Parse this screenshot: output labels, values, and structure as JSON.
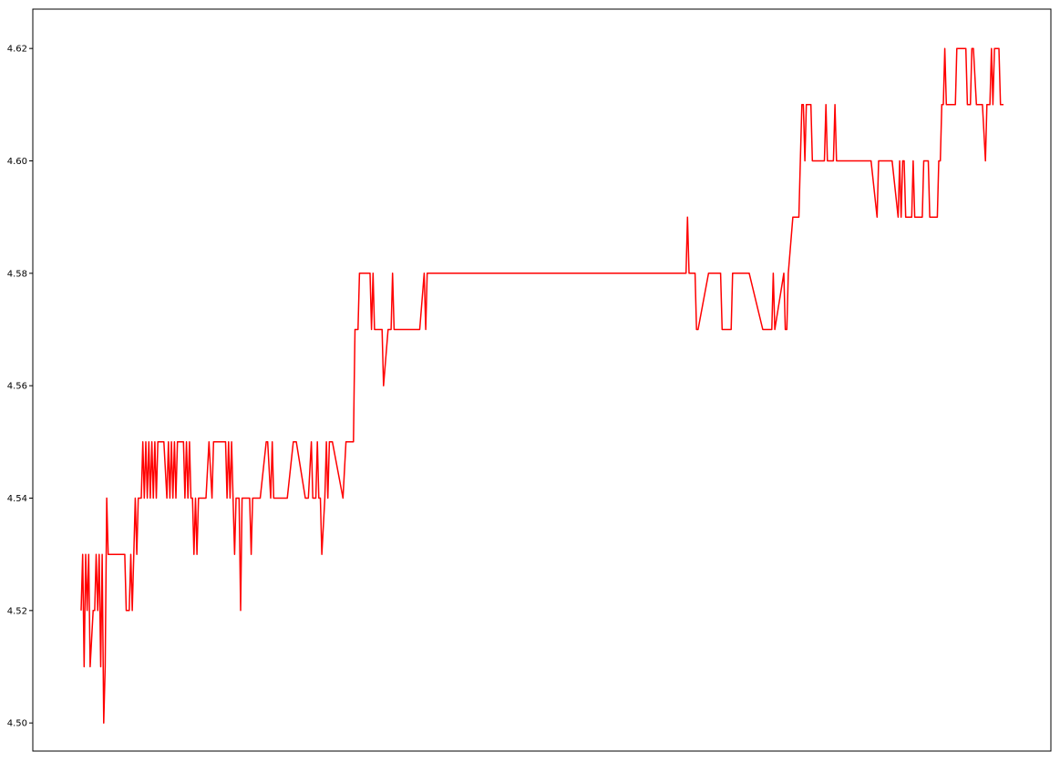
{
  "chart_data": {
    "type": "line",
    "title": "",
    "xlabel": "",
    "ylabel": "",
    "ylim": [
      4.495,
      4.627
    ],
    "grid": false,
    "legend": "none",
    "x_ticks_visible": false,
    "y_ticks": [
      "4.50",
      "4.52",
      "4.54",
      "4.56",
      "4.58",
      "4.60",
      "4.62"
    ],
    "series": [
      {
        "color": "#ff0000",
        "points": [
          [
            1,
            4.52
          ],
          [
            2,
            4.53
          ],
          [
            3,
            4.51
          ],
          [
            4,
            4.53
          ],
          [
            5,
            4.52
          ],
          [
            6,
            4.53
          ],
          [
            7,
            4.51
          ],
          [
            9,
            4.52
          ],
          [
            10,
            4.52
          ],
          [
            11,
            4.53
          ],
          [
            12,
            4.52
          ],
          [
            13,
            4.53
          ],
          [
            14,
            4.51
          ],
          [
            15,
            4.53
          ],
          [
            16,
            4.5
          ],
          [
            17,
            4.51
          ],
          [
            18,
            4.54
          ],
          [
            19,
            4.53
          ],
          [
            30,
            4.53
          ],
          [
            31,
            4.52
          ],
          [
            33,
            4.52
          ],
          [
            34,
            4.53
          ],
          [
            35,
            4.52
          ],
          [
            36,
            4.53
          ],
          [
            37,
            4.54
          ],
          [
            38,
            4.53
          ],
          [
            39,
            4.54
          ],
          [
            41,
            4.54
          ],
          [
            42,
            4.55
          ],
          [
            43,
            4.54
          ],
          [
            44,
            4.55
          ],
          [
            45,
            4.54
          ],
          [
            46,
            4.55
          ],
          [
            47,
            4.54
          ],
          [
            48,
            4.55
          ],
          [
            49,
            4.54
          ],
          [
            50,
            4.55
          ],
          [
            51,
            4.54
          ],
          [
            52,
            4.55
          ],
          [
            56,
            4.55
          ],
          [
            58,
            4.54
          ],
          [
            59,
            4.55
          ],
          [
            60,
            4.54
          ],
          [
            61,
            4.55
          ],
          [
            62,
            4.54
          ],
          [
            63,
            4.55
          ],
          [
            64,
            4.54
          ],
          [
            65,
            4.55
          ],
          [
            69,
            4.55
          ],
          [
            70,
            4.54
          ],
          [
            71,
            4.55
          ],
          [
            72,
            4.54
          ],
          [
            73,
            4.55
          ],
          [
            74,
            4.54
          ],
          [
            75,
            4.54
          ],
          [
            76,
            4.53
          ],
          [
            77,
            4.54
          ],
          [
            78,
            4.53
          ],
          [
            79,
            4.54
          ],
          [
            84,
            4.54
          ],
          [
            86,
            4.55
          ],
          [
            88,
            4.54
          ],
          [
            89,
            4.55
          ],
          [
            97,
            4.55
          ],
          [
            98,
            4.54
          ],
          [
            99,
            4.55
          ],
          [
            100,
            4.54
          ],
          [
            101,
            4.55
          ],
          [
            102,
            4.54
          ],
          [
            103,
            4.53
          ],
          [
            104,
            4.54
          ],
          [
            106,
            4.54
          ],
          [
            107,
            4.52
          ],
          [
            108,
            4.54
          ],
          [
            113,
            4.54
          ],
          [
            114,
            4.53
          ],
          [
            115,
            4.54
          ],
          [
            120,
            4.54
          ],
          [
            124,
            4.55
          ],
          [
            125,
            4.55
          ],
          [
            127,
            4.54
          ],
          [
            128,
            4.55
          ],
          [
            129,
            4.54
          ],
          [
            138,
            4.54
          ],
          [
            142,
            4.55
          ],
          [
            144,
            4.55
          ],
          [
            150,
            4.54
          ],
          [
            152,
            4.54
          ],
          [
            154,
            4.55
          ],
          [
            155,
            4.54
          ],
          [
            157,
            4.54
          ],
          [
            158,
            4.55
          ],
          [
            159,
            4.54
          ],
          [
            160,
            4.54
          ],
          [
            161,
            4.53
          ],
          [
            163,
            4.54
          ],
          [
            164,
            4.55
          ],
          [
            165,
            4.54
          ],
          [
            166,
            4.55
          ],
          [
            168,
            4.55
          ],
          [
            175,
            4.54
          ],
          [
            177,
            4.55
          ],
          [
            182,
            4.55
          ],
          [
            182.5,
            4.56
          ],
          [
            183,
            4.57
          ],
          [
            185,
            4.57
          ],
          [
            186,
            4.58
          ],
          [
            193,
            4.58
          ],
          [
            194,
            4.57
          ],
          [
            195,
            4.58
          ],
          [
            196,
            4.57
          ],
          [
            201,
            4.57
          ],
          [
            202,
            4.56
          ],
          [
            205,
            4.57
          ],
          [
            207,
            4.57
          ],
          [
            208,
            4.58
          ],
          [
            209,
            4.57
          ],
          [
            226,
            4.57
          ],
          [
            229,
            4.58
          ],
          [
            230,
            4.57
          ],
          [
            231,
            4.58
          ],
          [
            403,
            4.58
          ],
          [
            404,
            4.59
          ],
          [
            405,
            4.58
          ],
          [
            409,
            4.58
          ],
          [
            410,
            4.57
          ],
          [
            411,
            4.57
          ],
          [
            418,
            4.58
          ],
          [
            426,
            4.58
          ],
          [
            427,
            4.57
          ],
          [
            433,
            4.57
          ],
          [
            434,
            4.58
          ],
          [
            445,
            4.58
          ],
          [
            454,
            4.57
          ],
          [
            460,
            4.57
          ],
          [
            461,
            4.58
          ],
          [
            462,
            4.57
          ],
          [
            468,
            4.58
          ],
          [
            469,
            4.57
          ],
          [
            470,
            4.57
          ],
          [
            471,
            4.58
          ],
          [
            474,
            4.59
          ],
          [
            478,
            4.59
          ],
          [
            479,
            4.6
          ],
          [
            480,
            4.61
          ],
          [
            481,
            4.61
          ],
          [
            482,
            4.6
          ],
          [
            483,
            4.61
          ],
          [
            486,
            4.61
          ],
          [
            487,
            4.6
          ],
          [
            495,
            4.6
          ],
          [
            496,
            4.61
          ],
          [
            497,
            4.6
          ],
          [
            501,
            4.6
          ],
          [
            502,
            4.61
          ],
          [
            503,
            4.6
          ],
          [
            526,
            4.6
          ],
          [
            530,
            4.59
          ],
          [
            531,
            4.6
          ],
          [
            540,
            4.6
          ],
          [
            544,
            4.59
          ],
          [
            545,
            4.6
          ],
          [
            546,
            4.59
          ],
          [
            547,
            4.6
          ],
          [
            548,
            4.6
          ],
          [
            549,
            4.59
          ],
          [
            553,
            4.59
          ],
          [
            554,
            4.6
          ],
          [
            555,
            4.59
          ],
          [
            560,
            4.59
          ],
          [
            561,
            4.6
          ],
          [
            564,
            4.6
          ],
          [
            565,
            4.59
          ],
          [
            570,
            4.59
          ],
          [
            571,
            4.6
          ],
          [
            572,
            4.6
          ],
          [
            573,
            4.61
          ],
          [
            574,
            4.61
          ],
          [
            575,
            4.62
          ],
          [
            576,
            4.61
          ],
          [
            582,
            4.61
          ],
          [
            583,
            4.62
          ],
          [
            589,
            4.62
          ],
          [
            590,
            4.61
          ],
          [
            592,
            4.61
          ],
          [
            593,
            4.62
          ],
          [
            594,
            4.62
          ],
          [
            596,
            4.61
          ],
          [
            600,
            4.61
          ],
          [
            602,
            4.6
          ],
          [
            603,
            4.61
          ],
          [
            605,
            4.61
          ],
          [
            606,
            4.62
          ],
          [
            607,
            4.61
          ],
          [
            608,
            4.62
          ],
          [
            611,
            4.62
          ],
          [
            612,
            4.61
          ],
          [
            614,
            4.61
          ]
        ]
      }
    ]
  }
}
